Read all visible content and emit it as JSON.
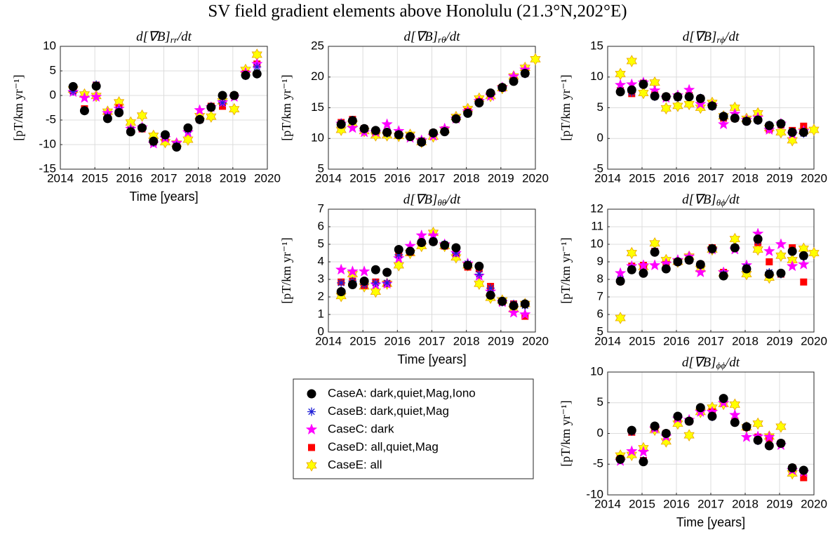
{
  "title": "SV field gradient elements above Honolulu (21.3°N,202°E)",
  "legend": [
    {
      "name": "CaseA: dark,quiet,Mag,Iono",
      "color": "#000000",
      "marker": "circle"
    },
    {
      "name": "CaseB: dark,quiet,Mag",
      "color": "#1f1fd6",
      "marker": "asterisk"
    },
    {
      "name": "CaseC: dark",
      "color": "#ff00ff",
      "marker": "pentagram"
    },
    {
      "name": "CaseD: all,quiet,Mag",
      "color": "#ff0000",
      "marker": "square"
    },
    {
      "name": "CaseE: all",
      "color": "#ffff00",
      "marker": "hexagram"
    }
  ],
  "chart_data": [
    {
      "type": "scatter",
      "title": [
        "d[∇B]",
        "rr",
        "/dt"
      ],
      "ylabel": "[pT/km yr⁻¹]",
      "xlabel": "Time [years]",
      "x": [
        2014.37,
        2014.7,
        2015.04,
        2015.37,
        2015.7,
        2016.04,
        2016.37,
        2016.7,
        2017.04,
        2017.37,
        2017.7,
        2018.04,
        2018.37,
        2018.7,
        2019.04,
        2019.37,
        2019.7
      ],
      "xlim": [
        2014,
        2020
      ],
      "xticks": [
        2014,
        2015,
        2016,
        2017,
        2018,
        2019,
        2020
      ],
      "ylim": [
        -15,
        10
      ],
      "yticks": [
        -15,
        -10,
        -5,
        0,
        5,
        10
      ],
      "grid": true,
      "series": [
        {
          "values": [
            1.8,
            -3.1,
            1.9,
            -4.7,
            -3.5,
            -7.4,
            -6.6,
            -9.3,
            -8.0,
            -10.5,
            -6.6,
            -4.9,
            -2.4,
            0,
            0,
            4.1,
            4.4
          ]
        },
        {
          "values": [
            0.8,
            -3,
            2.2,
            -4.3,
            -3,
            -7,
            -6.5,
            -9.6,
            -8.3,
            -10.2,
            -7,
            -5,
            -2.4,
            -1.5,
            0,
            4,
            5.8
          ]
        },
        {
          "values": [
            0.7,
            -0.5,
            -0.3,
            -3.6,
            -2.7,
            -6.8,
            -6.5,
            -9.8,
            -8.7,
            -9.7,
            -7.5,
            -3,
            -2.4,
            -1.4,
            -0.3,
            4.6,
            6.4
          ]
        },
        {
          "values": [
            1,
            -2.7,
            2.1,
            -4.1,
            -2.5,
            -7,
            -6.8,
            -9.4,
            -8.6,
            -10,
            -6.8,
            -4.9,
            -2.2,
            -2.2,
            0,
            4.4,
            6.4
          ]
        },
        {
          "values": [
            1.2,
            0.2,
            -0.1,
            -3.3,
            -1.4,
            -5.5,
            -4.1,
            -8.2,
            -9.5,
            -9.8,
            -9,
            -4.2,
            -4.3,
            -1.2,
            -2.8,
            5.2,
            8.3
          ]
        }
      ]
    },
    {
      "type": "scatter",
      "title": [
        "d[∇B]",
        "rθ",
        "/dt"
      ],
      "ylabel": "[pT/km yr⁻¹]",
      "x": [
        2014.37,
        2014.7,
        2015.04,
        2015.37,
        2015.7,
        2016.04,
        2016.37,
        2016.7,
        2017.04,
        2017.37,
        2017.7,
        2018.04,
        2018.37,
        2018.7,
        2019.04,
        2019.37,
        2019.7,
        2020.0
      ],
      "xlim": [
        2014,
        2020
      ],
      "xticks": [
        2014,
        2015,
        2016,
        2017,
        2018,
        2019,
        2020
      ],
      "ylim": [
        5,
        25
      ],
      "yticks": [
        5,
        10,
        15,
        20,
        25
      ],
      "grid": true,
      "series": [
        {
          "values": [
            12.3,
            12.9,
            11.6,
            11.3,
            11,
            10.6,
            10.3,
            9.4,
            10.9,
            11.1,
            13.2,
            14.1,
            15.8,
            17.4,
            18.3,
            19.3,
            20.6,
            null
          ]
        },
        {
          "values": [
            12.5,
            13,
            11.5,
            11.2,
            10.8,
            10.7,
            10.3,
            9.6,
            10.8,
            11.2,
            13.2,
            14.1,
            15.8,
            17.4,
            18.3,
            19.3,
            20.5,
            null
          ]
        },
        {
          "values": [
            12.4,
            11.7,
            11,
            11,
            12.3,
            11.2,
            10.1,
            9.7,
            10.4,
            11.6,
            13.2,
            14.4,
            16.1,
            16.9,
            18.3,
            20.1,
            21.2,
            null
          ]
        },
        {
          "values": [
            12.6,
            13.1,
            11.6,
            11.2,
            11,
            10.8,
            10.3,
            9.6,
            10.9,
            11.4,
            13.2,
            14.4,
            16,
            17.3,
            18.3,
            19.4,
            20.6,
            null
          ]
        },
        {
          "values": [
            11.4,
            12.4,
            11.2,
            10.5,
            10.5,
            10.4,
            10.6,
            9.4,
            10.3,
            11.4,
            13.5,
            14.8,
            16.5,
            16.9,
            18.2,
            20.1,
            21.5,
            22.9
          ]
        }
      ]
    },
    {
      "type": "scatter",
      "title": [
        "d[∇B]",
        "rϕ",
        "/dt"
      ],
      "ylabel": "[pT/km yr⁻¹]",
      "x": [
        2014.37,
        2014.7,
        2015.04,
        2015.37,
        2015.7,
        2016.04,
        2016.37,
        2016.7,
        2017.04,
        2017.37,
        2017.7,
        2018.04,
        2018.37,
        2018.7,
        2019.04,
        2019.37,
        2019.7,
        2020.0
      ],
      "xlim": [
        2014,
        2020
      ],
      "xticks": [
        2014,
        2015,
        2016,
        2017,
        2018,
        2019,
        2020
      ],
      "ylim": [
        -5,
        15
      ],
      "yticks": [
        -5,
        0,
        5,
        10,
        15
      ],
      "grid": true,
      "series": [
        {
          "values": [
            7.6,
            7.9,
            8.8,
            6.9,
            6.8,
            6.8,
            6.8,
            6.5,
            5.3,
            3.6,
            3.3,
            2.8,
            3.0,
            2.1,
            2.4,
            1.0,
            1.0,
            null
          ]
        },
        {
          "values": [
            7.7,
            7.5,
            9,
            6.8,
            6.7,
            6.6,
            6.8,
            6.6,
            5.2,
            3.4,
            3.4,
            2.9,
            2.9,
            2.2,
            2.3,
            1.1,
            0.8,
            null
          ]
        },
        {
          "values": [
            8.7,
            8.8,
            9.1,
            7.8,
            6.6,
            7,
            7.9,
            5.6,
            5.4,
            2.3,
            4.0,
            3.0,
            3.4,
            1.4,
            2.4,
            0.7,
            1.2,
            null
          ]
        },
        {
          "values": [
            7.8,
            7.3,
            9,
            7.1,
            6.8,
            6.8,
            7,
            6.5,
            5.3,
            3.3,
            3.3,
            2.9,
            3.1,
            1.5,
            2.2,
            1.3,
            2.0,
            null
          ]
        },
        {
          "values": [
            10.5,
            12.6,
            7.4,
            9.1,
            4.9,
            5.3,
            5.6,
            5.0,
            5.8,
            3.6,
            5.0,
            3.2,
            4.1,
            1.7,
            1.0,
            -0.3,
            1.2,
            1.4
          ]
        }
      ]
    },
    {
      "type": "scatter",
      "title": [
        "d[∇B]",
        "θθ",
        "/dt"
      ],
      "ylabel": "[pT/km yr⁻¹]",
      "xlabel": "Time [years]",
      "x": [
        2014.37,
        2014.7,
        2015.04,
        2015.37,
        2015.7,
        2016.04,
        2016.37,
        2016.7,
        2017.04,
        2017.37,
        2017.7,
        2018.04,
        2018.37,
        2018.7,
        2019.04,
        2019.37,
        2019.7
      ],
      "xlim": [
        2014,
        2020
      ],
      "xticks": [
        2014,
        2015,
        2016,
        2017,
        2018,
        2019,
        2020
      ],
      "ylim": [
        0,
        7
      ],
      "yticks": [
        0,
        1,
        2,
        3,
        4,
        5,
        6,
        7
      ],
      "grid": true,
      "series": [
        {
          "values": [
            2.3,
            2.7,
            2.9,
            3.55,
            3.4,
            4.7,
            4.6,
            5.1,
            5.15,
            4.95,
            4.8,
            3.8,
            3.75,
            2.1,
            1.75,
            1.5,
            1.6
          ]
        },
        {
          "values": [
            2.8,
            2.9,
            2.7,
            2.8,
            2.8,
            4.4,
            4.6,
            5.1,
            5.2,
            5.0,
            4.5,
            3.9,
            3.3,
            2.5,
            1.7,
            1.6,
            1.5
          ]
        },
        {
          "values": [
            3.55,
            3.45,
            3.45,
            2.7,
            2.75,
            4.2,
            4.9,
            5.5,
            5.5,
            5.0,
            4.5,
            3.9,
            3.2,
            2.3,
            1.7,
            1.1,
            1.0
          ]
        },
        {
          "values": [
            2.85,
            2.9,
            2.65,
            2.85,
            2.75,
            4.4,
            4.55,
            5.1,
            5.15,
            4.9,
            4.5,
            3.7,
            3.6,
            2.6,
            1.7,
            1.6,
            0.9
          ]
        },
        {
          "values": [
            2.05,
            3.3,
            2.6,
            2.3,
            2.75,
            3.8,
            4.5,
            4.9,
            5.65,
            4.9,
            4.25,
            3.8,
            2.75,
            1.95,
            1.8,
            1.3,
            1.6
          ]
        }
      ]
    },
    {
      "type": "scatter",
      "title": [
        "d[∇B]",
        "θϕ",
        "/dt"
      ],
      "ylabel": "[pT/km yr⁻¹]",
      "x": [
        2014.37,
        2014.7,
        2015.04,
        2015.37,
        2015.7,
        2016.04,
        2016.37,
        2016.7,
        2017.04,
        2017.37,
        2017.7,
        2018.04,
        2018.37,
        2018.7,
        2019.04,
        2019.37,
        2019.7,
        2020.0
      ],
      "xlim": [
        2014,
        2020
      ],
      "xticks": [
        2014,
        2015,
        2016,
        2017,
        2018,
        2019,
        2020
      ],
      "ylim": [
        5,
        12
      ],
      "yticks": [
        5,
        6,
        7,
        8,
        9,
        10,
        11,
        12
      ],
      "grid": true,
      "series": [
        {
          "values": [
            7.9,
            8.55,
            8.35,
            9.55,
            8.6,
            9.0,
            9.1,
            8.85,
            9.75,
            8.2,
            9.8,
            8.6,
            10.3,
            8.3,
            8.35,
            9.6,
            9.35,
            null
          ]
        },
        {
          "values": [
            8,
            8.6,
            8.4,
            9.6,
            8.6,
            9,
            9.1,
            8.8,
            9.7,
            8.3,
            9.8,
            8.7,
            10.2,
            8.4,
            8.3,
            9.6,
            9.3,
            null
          ]
        },
        {
          "values": [
            8.35,
            8.75,
            8.8,
            8.8,
            8.9,
            9.1,
            9.3,
            8.4,
            9.7,
            8.4,
            9.7,
            8.8,
            10.6,
            9.6,
            10.0,
            8.75,
            8.85,
            null
          ]
        },
        {
          "values": [
            7.9,
            8.75,
            8.8,
            9.6,
            8.85,
            9.0,
            9.1,
            8.85,
            9.8,
            8.4,
            9.8,
            8.6,
            10.1,
            9.0,
            8.3,
            9.8,
            7.85,
            null
          ]
        },
        {
          "values": [
            5.8,
            9.5,
            8.7,
            10.05,
            9.1,
            9.0,
            9.3,
            8.6,
            9.7,
            8.35,
            10.3,
            8.3,
            9.7,
            8.1,
            9.35,
            9.1,
            9.75,
            9.5
          ]
        }
      ]
    },
    {
      "type": "scatter",
      "title": [
        "d[∇B]",
        "ϕϕ",
        "/dt"
      ],
      "ylabel": "[pT/km yr⁻¹]",
      "xlabel": "Time [years]",
      "x": [
        2014.37,
        2014.7,
        2015.04,
        2015.37,
        2015.7,
        2016.04,
        2016.37,
        2016.7,
        2017.04,
        2017.37,
        2017.7,
        2018.04,
        2018.37,
        2018.7,
        2019.04,
        2019.37,
        2019.7
      ],
      "xlim": [
        2014,
        2020
      ],
      "xticks": [
        2014,
        2015,
        2016,
        2017,
        2018,
        2019,
        2020
      ],
      "ylim": [
        -10,
        10
      ],
      "yticks": [
        -10,
        -5,
        0,
        5,
        10
      ],
      "grid": true,
      "series": [
        {
          "values": [
            -4.2,
            0.5,
            -4.6,
            1.2,
            0,
            2.8,
            2.0,
            4.2,
            2.8,
            5.7,
            1.8,
            1.1,
            -1.1,
            -2,
            -1.6,
            -5.6,
            -6
          ]
        },
        {
          "values": [
            -4.3,
            0.3,
            -4.4,
            1.0,
            0,
            2.7,
            2.0,
            4.2,
            2.7,
            5.7,
            1.8,
            1,
            -1.2,
            -2,
            -1.6,
            -5.6,
            -6
          ]
        },
        {
          "values": [
            -4.5,
            -2.9,
            -3,
            0.8,
            -0.5,
            2.4,
            2.2,
            3.5,
            3.5,
            5.0,
            3.0,
            -0.6,
            -0.5,
            -0.6,
            -1.9,
            -6,
            -6.3
          ]
        },
        {
          "values": [
            -4.1,
            0.2,
            -4.4,
            0.9,
            0,
            2.5,
            2.0,
            4.0,
            3.5,
            5.6,
            2.0,
            1.0,
            -0.6,
            -0.8,
            -1.6,
            -5.6,
            -7.2
          ]
        },
        {
          "values": [
            -3.6,
            -3.5,
            -2.4,
            0.6,
            -1.3,
            1.6,
            -0.3,
            3.5,
            4.2,
            4.8,
            4.7,
            1.0,
            1.6,
            -0.5,
            1.1,
            -6.5,
            null
          ]
        }
      ]
    }
  ]
}
